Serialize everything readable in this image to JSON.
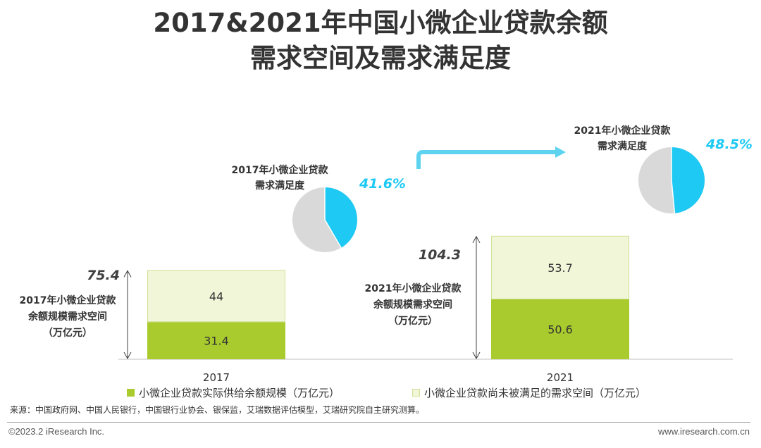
{
  "title": {
    "line1": "2017&2021年中国小微企业贷款余额",
    "line2": "需求空间及需求满足度"
  },
  "colors": {
    "supply": "#a9cb2d",
    "unmet": "#f1f6d9",
    "unmet_border": "#cfe195",
    "pie_highlight": "#1ec9f3",
    "pie_rest": "#d9d9d9",
    "arrow": "#5dd3f0",
    "total_text": "#404040"
  },
  "chart_data": {
    "type": "bar",
    "stacked": true,
    "categories": [
      "2017",
      "2021"
    ],
    "series": [
      {
        "name": "小微企业贷款实际供给余额规模（万亿元）",
        "values": [
          31.4,
          50.6
        ],
        "labels": [
          "31.4",
          "50.6"
        ]
      },
      {
        "name": "小微企业贷款尚未被满足的需求空间（万亿元）",
        "values": [
          44,
          53.7
        ],
        "labels": [
          "44",
          "53.7"
        ]
      }
    ],
    "totals": [
      75.4,
      104.3
    ],
    "total_labels": [
      "75.4",
      "104.3"
    ],
    "total_captions": [
      [
        "2017年小微企业贷款",
        "余额规模需求空间",
        "（万亿元）"
      ],
      [
        "2021年小微企业贷款",
        "余额规模需求空间",
        "（万亿元）"
      ]
    ],
    "satisfaction": {
      "type": "pie",
      "values": [
        41.6,
        48.5
      ],
      "labels": [
        "41.6%",
        "48.5%"
      ],
      "captions": [
        [
          "2017年小微企业贷款",
          "需求满足度"
        ],
        [
          "2021年小微企业贷款",
          "需求满足度"
        ]
      ]
    },
    "legend_position": "bottom"
  },
  "source": "来源：中国政府网、中国人民银行，中国银行业协会、银保监，艾瑞数据评估模型，艾瑞研究院自主研究测算。",
  "footer": {
    "left": "©2023.2 iResearch Inc.",
    "right": "www.iresearch.com.cn"
  }
}
